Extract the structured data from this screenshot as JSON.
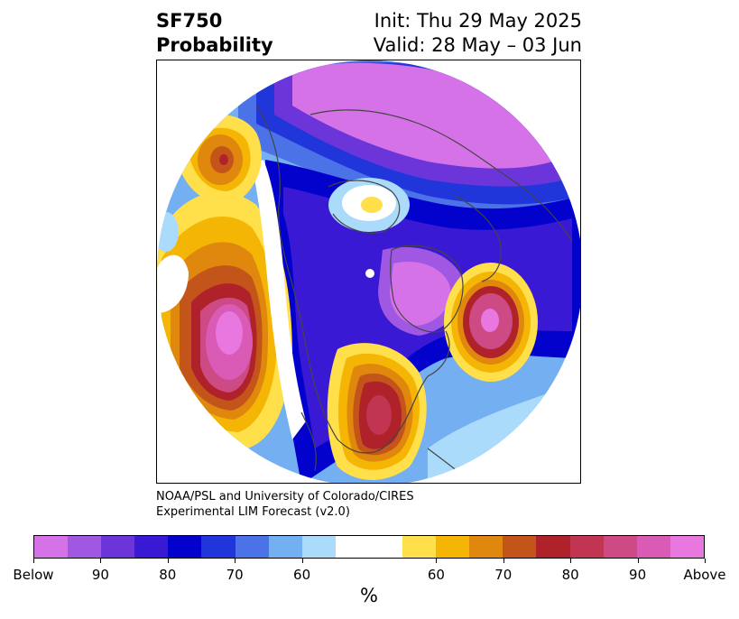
{
  "header": {
    "title_line1": "SF750",
    "title_line2": "Probability",
    "init_text": "Init: Thu 29 May 2025",
    "valid_text": "Valid: 28 May – 03 Jun"
  },
  "credit": {
    "line1": "NOAA/PSL and University of Colorado/CIRES",
    "line2": "Experimental LIM Forecast (v2.0)"
  },
  "colorbar": {
    "unit": "%",
    "colors": [
      "#d672e8",
      "#a057e2",
      "#6b35d9",
      "#3a19d4",
      "#0202cc",
      "#2136da",
      "#4b72e7",
      "#74b0f1",
      "#abdbfb",
      "#ffffff",
      "#ffe04b",
      "#f4b505",
      "#e0870e",
      "#c4551a",
      "#b0222a",
      "#c23552",
      "#cd4a84",
      "#da5bb5",
      "#e877e0"
    ],
    "tick_labels": [
      "Below",
      "90",
      "80",
      "70",
      "60",
      "60",
      "70",
      "80",
      "90",
      "Above"
    ]
  },
  "legend_colors": {
    "below_extreme": "#d672e8",
    "below_strong": "#3a19d4",
    "below_weak": "#abdbfb",
    "neutral": "#ffffff",
    "above_weak": "#ffe04b",
    "above_strong": "#b0222a",
    "above_extreme": "#e877e0"
  }
}
